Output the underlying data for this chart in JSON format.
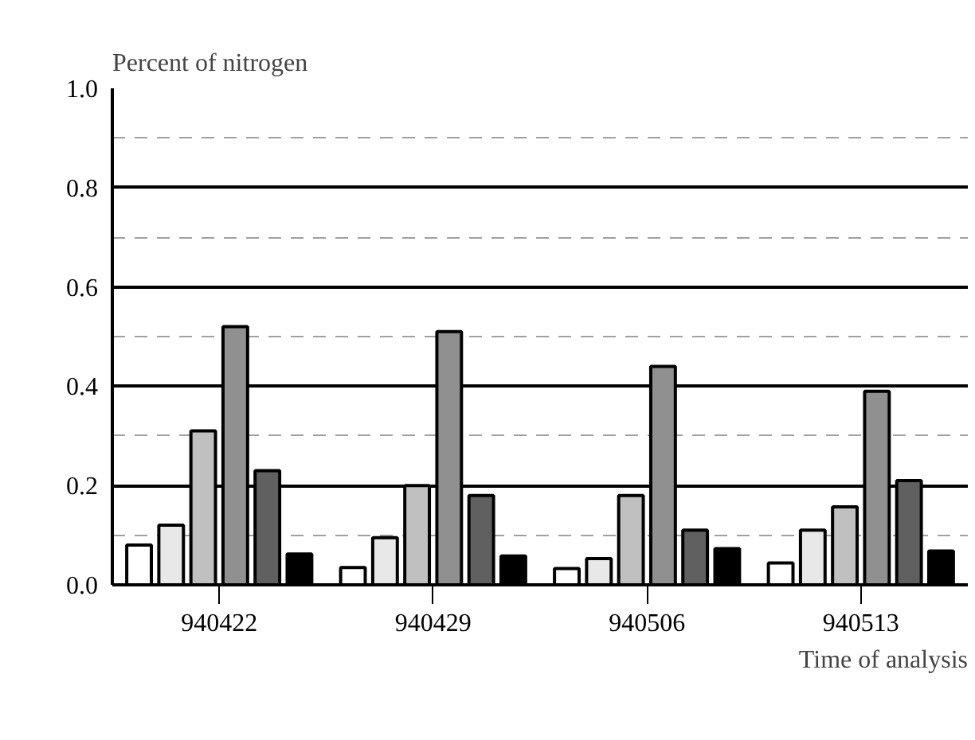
{
  "chart_data": {
    "type": "bar",
    "xlabel": "Time of analysis",
    "ylabel": "Percent of nitrogen",
    "categories": [
      "940422",
      "940429",
      "940506",
      "940513"
    ],
    "series": [
      {
        "color": "#ffffff",
        "values": [
          0.08,
          0.035,
          0.033,
          0.044
        ]
      },
      {
        "color": "#e8e8e8",
        "values": [
          0.12,
          0.095,
          0.053,
          0.11
        ]
      },
      {
        "color": "#c0c0c0",
        "values": [
          0.31,
          0.2,
          0.18,
          0.157
        ]
      },
      {
        "color": "#909090",
        "values": [
          0.52,
          0.51,
          0.44,
          0.39
        ]
      },
      {
        "color": "#606060",
        "values": [
          0.23,
          0.18,
          0.11,
          0.21
        ]
      },
      {
        "color": "#000000",
        "values": [
          0.062,
          0.058,
          0.073,
          0.068
        ]
      }
    ],
    "ylim": [
      0,
      1.0
    ],
    "yticks": [
      {
        "value": 0,
        "label": "0.0"
      },
      {
        "value": 0.2,
        "label": "0.2"
      },
      {
        "value": 0.4,
        "label": "0.4"
      },
      {
        "value": 0.6,
        "label": "0.6"
      },
      {
        "value": 0.8,
        "label": "0.8"
      },
      {
        "value": 1.0,
        "label": "1.0"
      }
    ],
    "grid": "y"
  }
}
